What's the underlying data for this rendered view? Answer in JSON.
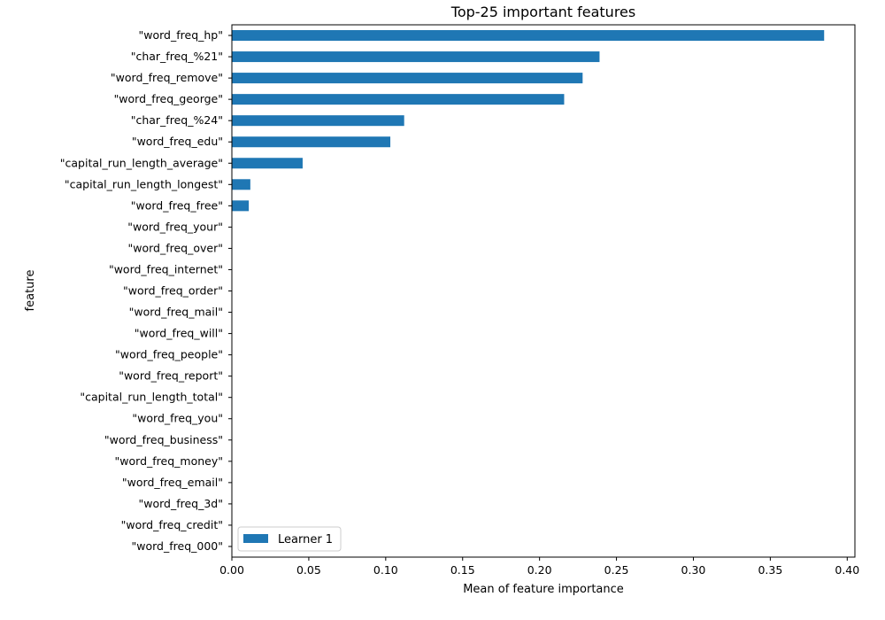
{
  "chart_data": {
    "type": "bar",
    "orientation": "horizontal",
    "title": "Top-25 important features",
    "xlabel": "Mean of feature importance",
    "ylabel": "feature",
    "xlim": [
      0,
      0.405
    ],
    "xticks": [
      0.0,
      0.05,
      0.1,
      0.15,
      0.2,
      0.25,
      0.3,
      0.35,
      0.4
    ],
    "xtick_labels": [
      "0.00",
      "0.05",
      "0.10",
      "0.15",
      "0.20",
      "0.25",
      "0.30",
      "0.35",
      "0.40"
    ],
    "grid": false,
    "legend_position": "bottom-left",
    "categories": [
      "\"word_freq_hp\"",
      "\"char_freq_%21\"",
      "\"word_freq_remove\"",
      "\"word_freq_george\"",
      "\"char_freq_%24\"",
      "\"word_freq_edu\"",
      "\"capital_run_length_average\"",
      "\"capital_run_length_longest\"",
      "\"word_freq_free\"",
      "\"word_freq_your\"",
      "\"word_freq_over\"",
      "\"word_freq_internet\"",
      "\"word_freq_order\"",
      "\"word_freq_mail\"",
      "\"word_freq_will\"",
      "\"word_freq_people\"",
      "\"word_freq_report\"",
      "\"capital_run_length_total\"",
      "\"word_freq_you\"",
      "\"word_freq_business\"",
      "\"word_freq_money\"",
      "\"word_freq_email\"",
      "\"word_freq_3d\"",
      "\"word_freq_credit\"",
      "\"word_freq_000\""
    ],
    "series": [
      {
        "name": "Learner 1",
        "color": "#1f77b4",
        "values": [
          0.385,
          0.239,
          0.228,
          0.216,
          0.112,
          0.103,
          0.046,
          0.012,
          0.011,
          0,
          0,
          0,
          0,
          0,
          0,
          0,
          0,
          0,
          0,
          0,
          0,
          0,
          0,
          0,
          0
        ]
      }
    ]
  }
}
